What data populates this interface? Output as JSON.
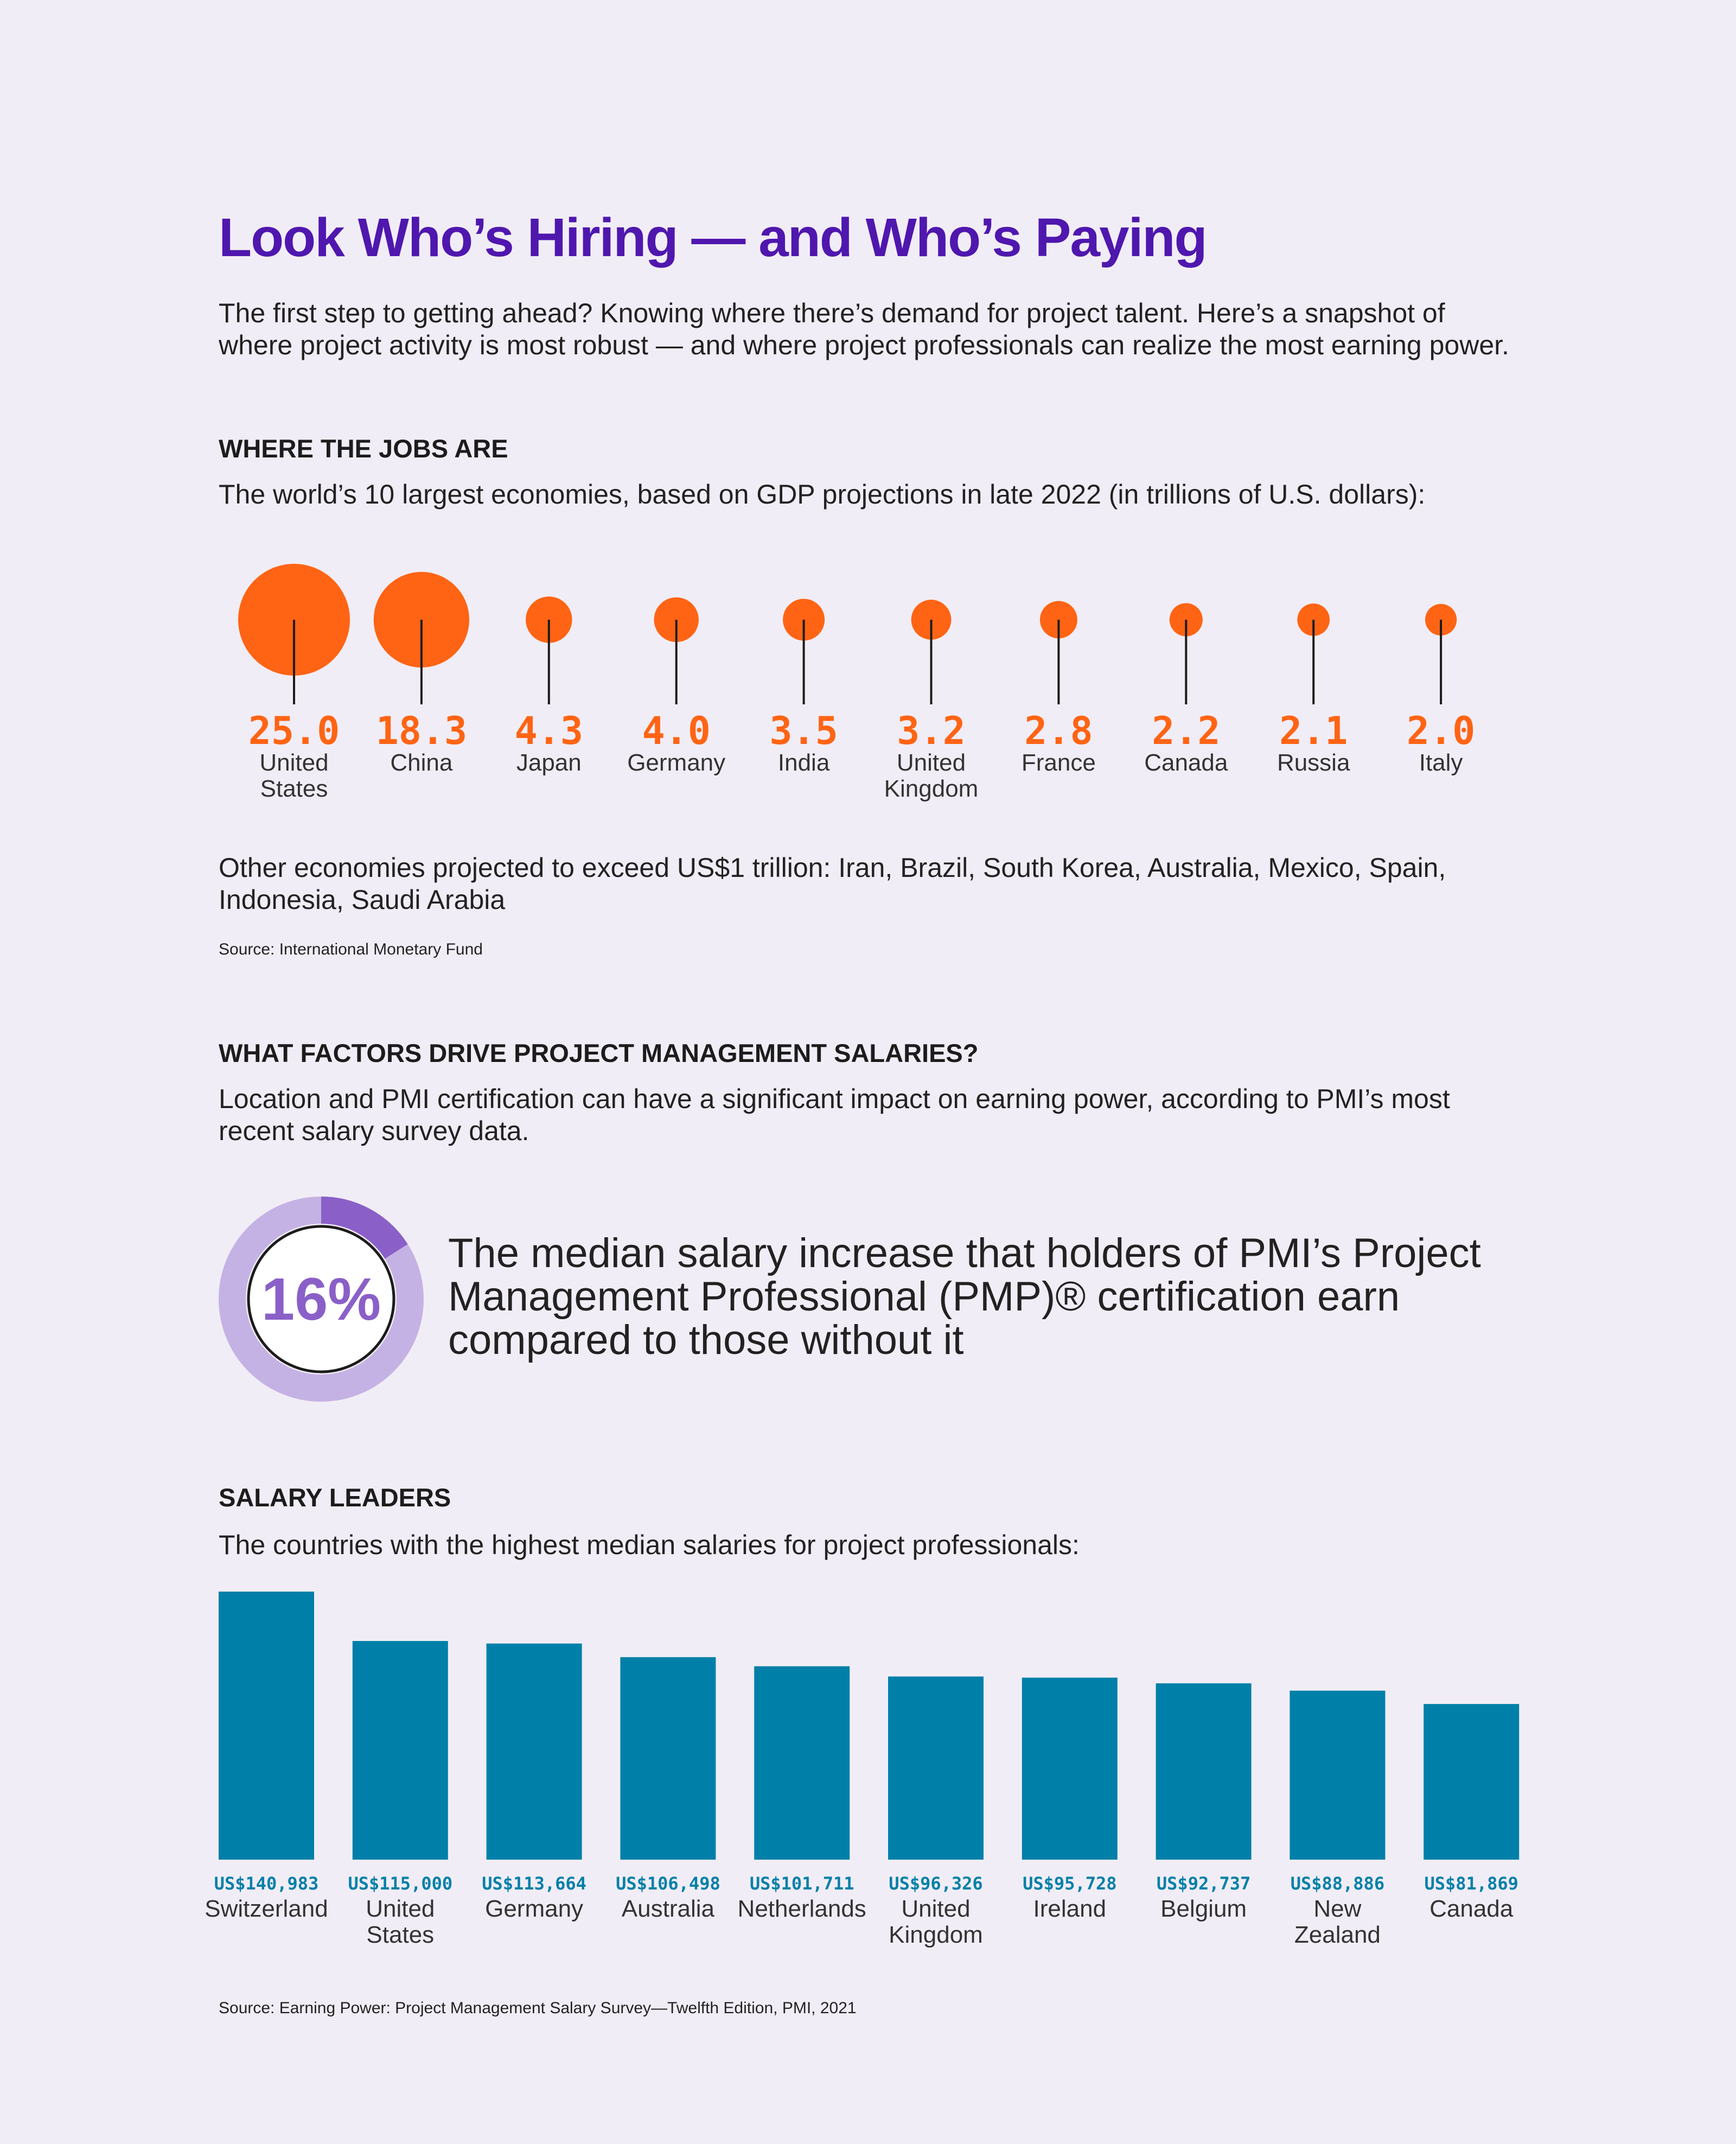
{
  "header": {
    "title": "Look Who’s Hiring — and Who’s Paying",
    "intro": "The first step to getting ahead? Knowing where there’s demand for project talent. Here’s a snapshot of where project activity is most robust — and where project professionals can realize the most earning power."
  },
  "chart_data": [
    {
      "type": "bubble",
      "heading": "WHERE THE JOBS ARE",
      "subtitle": "The world’s 10 largest economies, based on GDP projections in late 2022 (in trillions of U.S. dollars):",
      "categories": [
        "United States",
        "China",
        "Japan",
        "Germany",
        "India",
        "United Kingdom",
        "France",
        "Canada",
        "Russia",
        "Italy"
      ],
      "values": [
        25.0,
        18.3,
        4.3,
        4.0,
        3.5,
        3.2,
        2.8,
        2.2,
        2.1,
        2.0
      ],
      "value_labels": [
        "25.0",
        "18.3",
        "4.3",
        "4.0",
        "3.5",
        "3.2",
        "2.8",
        "2.2",
        "2.1",
        "2.0"
      ],
      "color": "#ff6414",
      "note": "Other economies projected to exceed US$1 trillion: Iran, Brazil, South Korea, Australia, Mexico, Spain, Indonesia, Saudi Arabia",
      "source": "Source: International Monetary Fund"
    },
    {
      "type": "donut",
      "heading": "WHAT FACTORS DRIVE PROJECT MANAGEMENT SALARIES?",
      "subtitle": "Location and PMI certification can have a significant impact on earning power, according to PMI’s most recent salary survey data.",
      "values": [
        16
      ],
      "value_labels": [
        "16%"
      ],
      "color": "#8a60c8",
      "description": "The median salary increase that holders of PMI’s Project Management Professional (PMP)® certification earn compared to those without it"
    },
    {
      "type": "bar",
      "heading": "SALARY LEADERS",
      "subtitle": "The countries with the highest median salaries for project professionals:",
      "categories": [
        "Switzerland",
        "United States",
        "Germany",
        "Australia",
        "Netherlands",
        "United Kingdom",
        "Ireland",
        "Belgium",
        "New Zealand",
        "Canada"
      ],
      "values": [
        140983,
        115000,
        113664,
        106498,
        101711,
        96326,
        95728,
        92737,
        88886,
        81869
      ],
      "value_labels": [
        "US$140,983",
        "US$115,000",
        "US$113,664",
        "US$106,498",
        "US$101,711",
        "US$96,326",
        "US$95,728",
        "US$92,737",
        "US$88,886",
        "US$81,869"
      ],
      "color": "#0080a8",
      "source": "Source: Earning Power: Project Management Salary Survey—Twelfth Edition, PMI, 2021"
    }
  ]
}
